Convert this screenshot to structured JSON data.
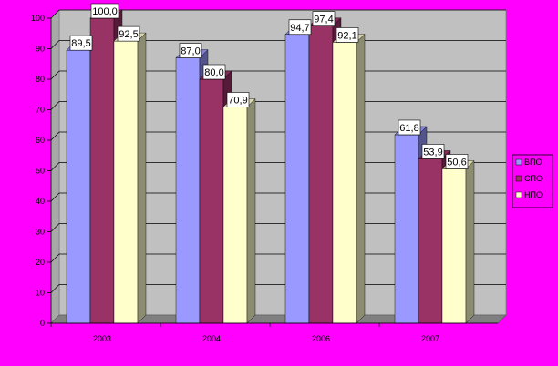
{
  "chart_data": {
    "type": "bar",
    "categories": [
      "2003",
      "2004",
      "2006",
      "2007"
    ],
    "series": [
      {
        "name": "ВПО",
        "values": [
          89.5,
          87.0,
          94.7,
          61.8
        ],
        "color": "#9999ff",
        "label_text": [
          "89,5",
          "87,0",
          "94,7",
          "61,8"
        ]
      },
      {
        "name": "СПО",
        "values": [
          100.0,
          80.0,
          97.4,
          53.9
        ],
        "color": "#993366",
        "label_text": [
          "100,0",
          "80,0",
          "97,4",
          "53,9"
        ]
      },
      {
        "name": "НПО",
        "values": [
          92.5,
          70.9,
          92.1,
          50.6
        ],
        "color": "#ffffcc",
        "label_text": [
          "92,5",
          "70,9",
          "92,1",
          "50,6"
        ]
      }
    ],
    "yticks": [
      "0",
      "10",
      "20",
      "30",
      "40",
      "50",
      "60",
      "70",
      "80",
      "90",
      "100"
    ],
    "ylim": [
      0,
      100
    ],
    "grid": true,
    "legend_position": "right",
    "three_d": true
  }
}
